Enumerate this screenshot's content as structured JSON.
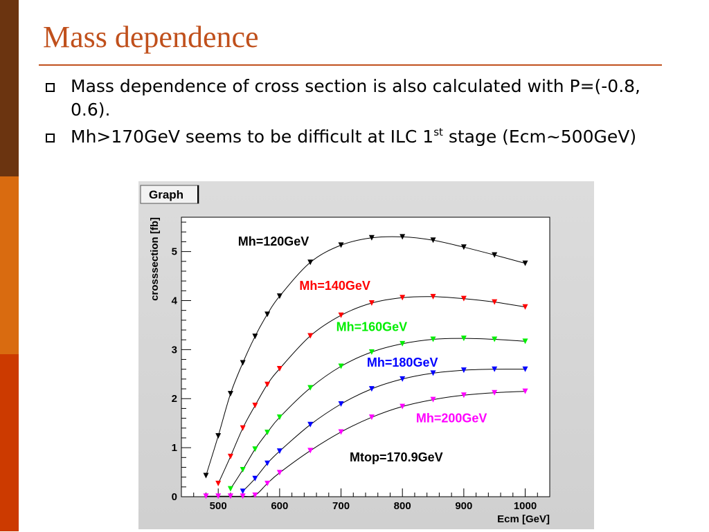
{
  "colors": {
    "accent": "#c0501c",
    "sidebar": [
      "#6b3410",
      "#d96b10",
      "#cc3a00"
    ]
  },
  "slide": {
    "title": "Mass dependence",
    "bullets": [
      {
        "text": "Mass dependence of cross section is also calculated with P=(-0.8, 0.6)."
      },
      {
        "pre": "Mh>170GeV seems to be difficult at ILC 1",
        "sup": "st",
        "post": " stage (Ecm~500GeV)"
      }
    ],
    "bullet_icon": "hollow-square-bullet-icon"
  },
  "chart_data": {
    "type": "line",
    "frame_title": "Graph",
    "xlabel": "Ecm [GeV]",
    "ylabel": "crosssection [fb]",
    "xlim": [
      440,
      1040
    ],
    "ylim": [
      0,
      5.7
    ],
    "xticks": [
      500,
      600,
      700,
      800,
      900,
      1000
    ],
    "yticks": [
      0,
      1,
      2,
      3,
      4,
      5
    ],
    "annotation": "Mtop=170.9GeV",
    "series": [
      {
        "name": "Mh=120GeV",
        "color": "#000000",
        "points": [
          [
            480,
            0.43
          ],
          [
            500,
            1.24
          ],
          [
            520,
            2.1
          ],
          [
            540,
            2.73
          ],
          [
            560,
            3.27
          ],
          [
            580,
            3.72
          ],
          [
            600,
            4.09
          ],
          [
            650,
            4.78
          ],
          [
            700,
            5.13
          ],
          [
            750,
            5.28
          ],
          [
            800,
            5.3
          ],
          [
            850,
            5.23
          ],
          [
            900,
            5.09
          ],
          [
            950,
            4.93
          ],
          [
            1000,
            4.76
          ]
        ]
      },
      {
        "name": "Mh=140GeV",
        "color": "#ff0000",
        "points": [
          [
            500,
            0.27
          ],
          [
            520,
            0.82
          ],
          [
            540,
            1.4
          ],
          [
            560,
            1.86
          ],
          [
            580,
            2.29
          ],
          [
            600,
            2.61
          ],
          [
            650,
            3.28
          ],
          [
            700,
            3.7
          ],
          [
            750,
            3.95
          ],
          [
            800,
            4.06
          ],
          [
            850,
            4.08
          ],
          [
            900,
            4.04
          ],
          [
            950,
            3.97
          ],
          [
            1000,
            3.87
          ]
        ]
      },
      {
        "name": "Mh=160GeV",
        "color": "#00ee00",
        "points": [
          [
            520,
            0.16
          ],
          [
            540,
            0.55
          ],
          [
            560,
            0.97
          ],
          [
            580,
            1.31
          ],
          [
            600,
            1.62
          ],
          [
            650,
            2.22
          ],
          [
            700,
            2.66
          ],
          [
            750,
            2.95
          ],
          [
            800,
            3.12
          ],
          [
            850,
            3.21
          ],
          [
            900,
            3.23
          ],
          [
            950,
            3.21
          ],
          [
            1000,
            3.17
          ]
        ]
      },
      {
        "name": "Mh=180GeV",
        "color": "#0000ff",
        "points": [
          [
            540,
            0.11
          ],
          [
            560,
            0.37
          ],
          [
            580,
            0.68
          ],
          [
            600,
            0.93
          ],
          [
            650,
            1.47
          ],
          [
            700,
            1.89
          ],
          [
            750,
            2.2
          ],
          [
            800,
            2.4
          ],
          [
            850,
            2.52
          ],
          [
            900,
            2.58
          ],
          [
            950,
            2.6
          ],
          [
            1000,
            2.6
          ]
        ]
      },
      {
        "name": "Mh=200GeV",
        "color": "#ff00ff",
        "points": [
          [
            480,
            0.01
          ],
          [
            500,
            0.01
          ],
          [
            520,
            0.01
          ],
          [
            540,
            0.01
          ],
          [
            560,
            0.03
          ],
          [
            580,
            0.27
          ],
          [
            600,
            0.49
          ],
          [
            650,
            0.94
          ],
          [
            700,
            1.32
          ],
          [
            750,
            1.62
          ],
          [
            800,
            1.84
          ],
          [
            850,
            1.98
          ],
          [
            900,
            2.07
          ],
          [
            950,
            2.12
          ],
          [
            1000,
            2.15
          ]
        ]
      }
    ]
  }
}
